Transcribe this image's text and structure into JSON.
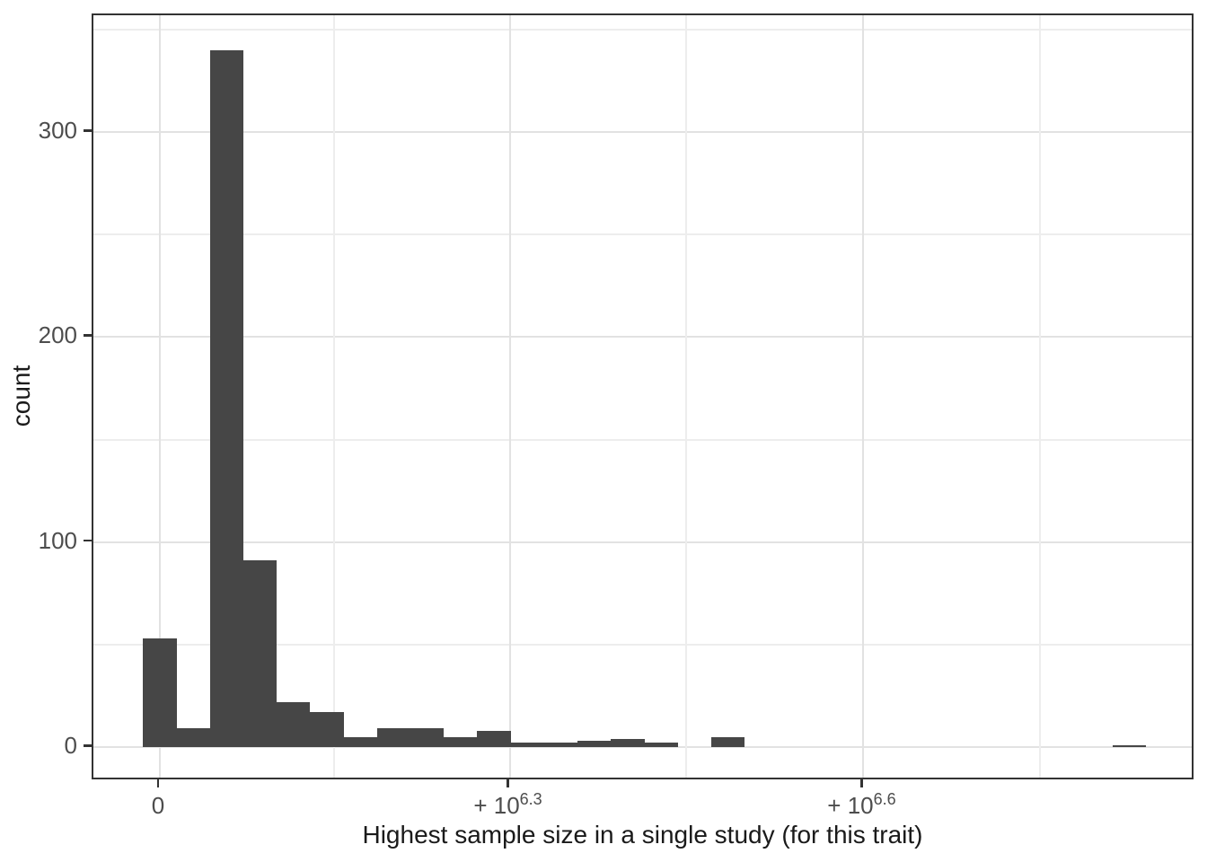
{
  "chart_data": {
    "type": "histogram",
    "title": "",
    "xlabel": "Highest sample size in a single study (for this trait)",
    "ylabel": "count",
    "bar_color": "#464646",
    "background": "#ffffff",
    "panel_border_color": "#333333",
    "grid": {
      "major": true,
      "minor": true,
      "major_color": "#e2e2e2",
      "minor_color": "#ededed"
    },
    "legend_position": "none",
    "x_scale_note": "pseudo-log x axis: u = log10(sample size + 10^6); labeled ticks 0, +10^6.3, +10^6.6",
    "x_ticks": [
      {
        "label": "0",
        "u": 6.0034
      },
      {
        "label": "+10^6.3",
        "prefix": "+ 10",
        "sup": "6.3",
        "u": 6.3
      },
      {
        "label": "+10^6.6",
        "prefix": "+ 10",
        "sup": "6.6",
        "u": 6.6
      }
    ],
    "x_minor_u": [
      6.1515,
      6.45,
      6.75
    ],
    "y_ticks": [
      0,
      100,
      200,
      300
    ],
    "y_minor": [
      50,
      150,
      250,
      350
    ],
    "ylim": [
      0,
      357
    ],
    "bin_width_u": 0.02833,
    "bins": [
      {
        "u": 6.0034,
        "count": 53
      },
      {
        "u": 6.0317,
        "count": 9
      },
      {
        "u": 6.0601,
        "count": 340
      },
      {
        "u": 6.0884,
        "count": 91
      },
      {
        "u": 6.1167,
        "count": 22
      },
      {
        "u": 6.1451,
        "count": 17
      },
      {
        "u": 6.1734,
        "count": 5
      },
      {
        "u": 6.2017,
        "count": 9
      },
      {
        "u": 6.2301,
        "count": 9
      },
      {
        "u": 6.2584,
        "count": 5
      },
      {
        "u": 6.2867,
        "count": 8
      },
      {
        "u": 6.3151,
        "count": 2
      },
      {
        "u": 6.3434,
        "count": 2
      },
      {
        "u": 6.3717,
        "count": 3
      },
      {
        "u": 6.4001,
        "count": 4
      },
      {
        "u": 6.4284,
        "count": 2
      },
      {
        "u": 6.4567,
        "count": 0
      },
      {
        "u": 6.4851,
        "count": 5
      },
      {
        "u": 6.5134,
        "count": 0
      },
      {
        "u": 6.5417,
        "count": 0
      },
      {
        "u": 6.5701,
        "count": 0
      },
      {
        "u": 6.5984,
        "count": 0
      },
      {
        "u": 6.6267,
        "count": 0
      },
      {
        "u": 6.6551,
        "count": 0
      },
      {
        "u": 6.6834,
        "count": 0
      },
      {
        "u": 6.7117,
        "count": 0
      },
      {
        "u": 6.7401,
        "count": 0
      },
      {
        "u": 6.7684,
        "count": 0
      },
      {
        "u": 6.7967,
        "count": 0
      },
      {
        "u": 6.8251,
        "count": 1
      }
    ]
  }
}
